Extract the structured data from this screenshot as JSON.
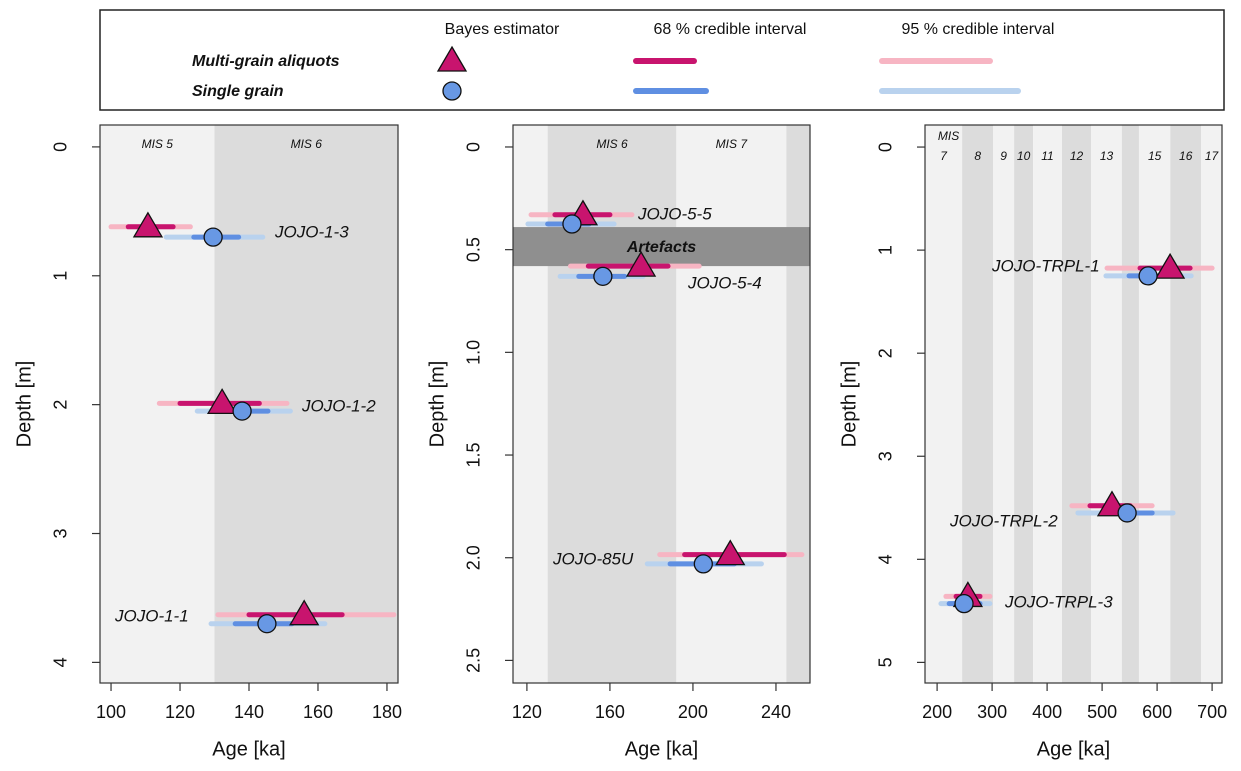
{
  "legend": {
    "headers": [
      "Bayes estimator",
      "68 % credible interval",
      "95 % credible interval"
    ],
    "entries": [
      {
        "name": "Multi-grain aliquots",
        "marker": "triangle",
        "color": "#c8146e",
        "color68": "#c8146e",
        "color95": "#f7b5c3"
      },
      {
        "name": "Single grain",
        "marker": "circle",
        "color": "#6898e4",
        "color68": "#5f8fe2",
        "color95": "#b9d2ee"
      }
    ]
  },
  "chart_data": [
    {
      "type": "interval",
      "xlabel": "Age [ka]",
      "ylabel": "Depth [m]",
      "xlim": [
        96.8,
        183.2
      ],
      "ylim": [
        4.16,
        -0.17
      ],
      "xticks": [
        100,
        120,
        140,
        160,
        180
      ],
      "yticks": [
        0,
        1,
        2,
        3,
        4
      ],
      "bands": [
        {
          "label": "MIS 5",
          "x": [
            96.8,
            130
          ],
          "color": "#f2f2f2"
        },
        {
          "label": "MIS 6",
          "x": [
            130,
            183.2
          ],
          "color": "#dcdcdc"
        }
      ],
      "samples": [
        {
          "label": "JOJO-1-3",
          "estimates": [
            {
              "age": 110.7,
              "depth": 0.62,
              "ci68": [
                105,
                118
              ],
              "ci95": [
                100,
                123
              ]
            },
            {
              "age": 129.6,
              "depth": 0.7,
              "ci68": [
                124,
                137
              ],
              "ci95": [
                116,
                144
              ]
            }
          ]
        },
        {
          "label": "JOJO-1-2",
          "estimates": [
            {
              "age": 132.2,
              "depth": 1.99,
              "ci68": [
                120,
                143
              ],
              "ci95": [
                114,
                151
              ]
            },
            {
              "age": 138,
              "depth": 2.05,
              "ci68": [
                130,
                145.5
              ],
              "ci95": [
                125,
                152
              ]
            }
          ]
        },
        {
          "label": "JOJO-1-1",
          "estimates": [
            {
              "age": 156,
              "depth": 3.63,
              "ci68": [
                140,
                167
              ],
              "ci95": [
                131,
                182
              ]
            },
            {
              "age": 145.2,
              "depth": 3.7,
              "ci68": [
                136,
                152.5
              ],
              "ci95": [
                129,
                162
              ]
            }
          ]
        }
      ]
    },
    {
      "type": "interval",
      "xlabel": "Age [ka]",
      "ylabel": "Depth [m]",
      "xlim": [
        113.3,
        256.4
      ],
      "ylim": [
        2.61,
        -0.107
      ],
      "xticks": [
        120,
        160,
        200,
        240
      ],
      "yticks": [
        0,
        0.5,
        {
          "value": 1,
          "label": "1.0"
        },
        1.5,
        {
          "value": 2,
          "label": "2.0"
        },
        2.5
      ],
      "bands": [
        {
          "label": null,
          "x": [
            113.3,
            130
          ],
          "color": "#f2f2f2"
        },
        {
          "label": "MIS 6",
          "x": [
            130,
            192
          ],
          "color": "#dcdcdc"
        },
        {
          "label": "MIS 7",
          "x": [
            192,
            245
          ],
          "color": "#f2f2f2"
        },
        {
          "label": null,
          "x": [
            245,
            256.4
          ],
          "color": "#dcdcdc"
        }
      ],
      "layers": [
        {
          "label": "Artefacts",
          "y": [
            0.39,
            0.58
          ],
          "color": "#8f8f8f"
        }
      ],
      "samples": [
        {
          "label": "JOJO-5-5",
          "estimates": [
            {
              "age": 147,
              "depth": 0.33,
              "ci68": [
                133.5,
                160
              ],
              "ci95": [
                122,
                170.6
              ]
            },
            {
              "age": 141.7,
              "depth": 0.375,
              "ci68": [
                130,
                150
              ],
              "ci95": [
                120.5,
                162
              ]
            }
          ]
        },
        {
          "label": "JOJO-5-4",
          "estimates": [
            {
              "age": 175,
              "depth": 0.58,
              "ci68": [
                149.6,
                188
              ],
              "ci95": [
                141,
                203
              ]
            },
            {
              "age": 156.6,
              "depth": 0.63,
              "ci68": [
                145,
                167
              ],
              "ci95": [
                136,
                176
              ]
            }
          ]
        },
        {
          "label": "JOJO-85U",
          "estimates": [
            {
              "age": 218,
              "depth": 1.985,
              "ci68": [
                196,
                244
              ],
              "ci95": [
                184,
                252.5
              ]
            },
            {
              "age": 205,
              "depth": 2.03,
              "ci68": [
                189,
                220
              ],
              "ci95": [
                178,
                233
              ]
            }
          ]
        }
      ]
    },
    {
      "type": "interval",
      "xlabel": "Age [ka]",
      "ylabel": "Depth [m]",
      "xlim": [
        178,
        718
      ],
      "ylim": [
        5.2,
        -0.214
      ],
      "xticks": [
        200,
        300,
        400,
        500,
        600,
        700
      ],
      "yticks": [
        0,
        1,
        2,
        3,
        4,
        5
      ],
      "band_title": "MIS",
      "bands": [
        {
          "label": "7",
          "x": [
            178,
            245.5
          ],
          "color": "#f2f2f2"
        },
        {
          "label": "8",
          "x": [
            245.5,
            302
          ],
          "color": "#dcdcdc"
        },
        {
          "label": "9",
          "x": [
            302,
            340
          ],
          "color": "#f2f2f2"
        },
        {
          "label": "10",
          "x": [
            340,
            374.5
          ],
          "color": "#dcdcdc"
        },
        {
          "label": "11",
          "x": [
            374.5,
            427
          ],
          "color": "#f2f2f2"
        },
        {
          "label": "12",
          "x": [
            427,
            480
          ],
          "color": "#dcdcdc"
        },
        {
          "label": "13",
          "x": [
            480,
            536
          ],
          "color": "#f2f2f2"
        },
        {
          "label": null,
          "x": [
            536,
            567
          ],
          "color": "#dcdcdc"
        },
        {
          "label": "15",
          "x": [
            567,
            624
          ],
          "color": "#f2f2f2"
        },
        {
          "label": "16",
          "x": [
            624,
            680
          ],
          "color": "#dcdcdc"
        },
        {
          "label": "17",
          "x": [
            680,
            718
          ],
          "color": "#f2f2f2"
        }
      ],
      "samples": [
        {
          "label": "JOJO-TRPL-1",
          "estimates": [
            {
              "age": 623.6,
              "depth": 1.175,
              "ci68": [
                569,
                660
              ],
              "ci95": [
                509,
                700
              ]
            },
            {
              "age": 583.6,
              "depth": 1.25,
              "ci68": [
                549,
                629
              ],
              "ci95": [
                507,
                662
              ]
            }
          ]
        },
        {
          "label": "JOJO-TRPL-2",
          "estimates": [
            {
              "age": 518,
              "depth": 3.48,
              "ci68": [
                478,
                551
              ],
              "ci95": [
                445,
                591
              ]
            },
            {
              "age": 545.5,
              "depth": 3.55,
              "ci68": [
                502,
                591
              ],
              "ci95": [
                456,
                629
              ]
            }
          ]
        },
        {
          "label": "JOJO-TRPL-3",
          "estimates": [
            {
              "age": 256,
              "depth": 4.36,
              "ci68": [
                234.5,
                278
              ],
              "ci95": [
                216,
                296
              ]
            },
            {
              "age": 249,
              "depth": 4.43,
              "ci68": [
                222,
                278
              ],
              "ci95": [
                207,
                296
              ]
            }
          ]
        }
      ]
    }
  ]
}
